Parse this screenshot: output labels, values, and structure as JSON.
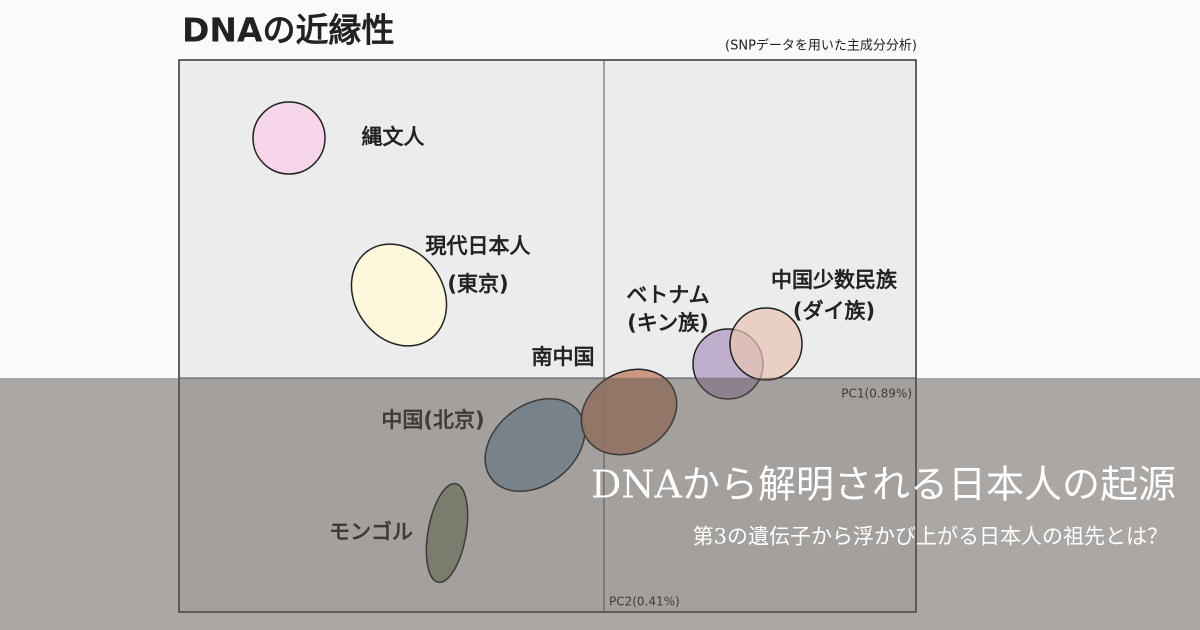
{
  "diagram": {
    "title": "DNAの近縁性",
    "subtitle": "(SNPデータを用いた主成分分析)",
    "axes": {
      "x": "PC1(0.89%)",
      "y": "PC2(0.41%)"
    },
    "groups": [
      {
        "label": "縄文人"
      },
      {
        "label": "現代日本人",
        "sublabel": "(東京)"
      },
      {
        "label": "ベトナム",
        "sublabel": "(キン族)"
      },
      {
        "label": "中国少数民族",
        "sublabel": "(ダイ族)"
      },
      {
        "label": "南中国"
      },
      {
        "label": "中国(北京)"
      },
      {
        "label": "モンゴル"
      }
    ]
  },
  "banner": {
    "title": "DNAから解明される日本人の起源",
    "subtitle": "第3の遺伝子から浮かび上がる日本人の祖先とは？"
  }
}
